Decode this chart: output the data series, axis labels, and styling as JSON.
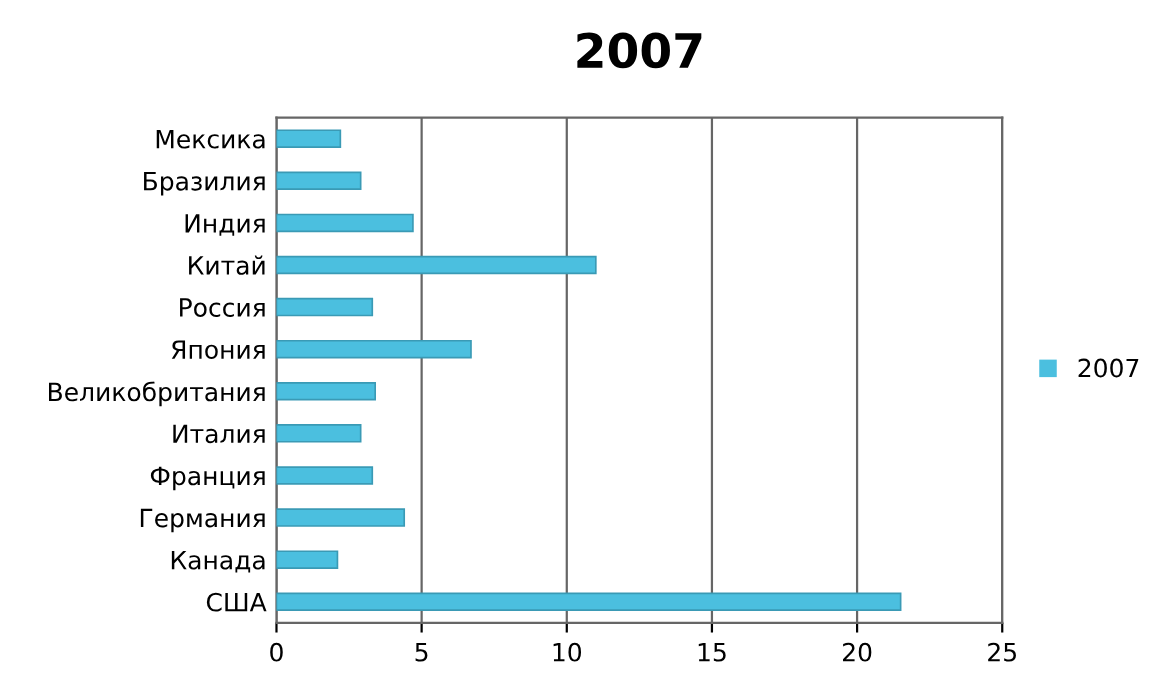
{
  "chart_data": {
    "type": "bar",
    "orientation": "horizontal",
    "title": "2007",
    "categories": [
      "Мексика",
      "Бразилия",
      "Индия",
      "Китай",
      "Россия",
      "Япония",
      "Великобритания",
      "Италия",
      "Франция",
      "Германия",
      "Канада",
      "США"
    ],
    "series": [
      {
        "name": "2007",
        "color": "#4bbfdf",
        "values": [
          2.2,
          2.9,
          4.7,
          11.0,
          3.3,
          6.7,
          3.4,
          2.9,
          3.3,
          4.4,
          2.1,
          21.5
        ]
      }
    ],
    "xlim": [
      0,
      25
    ],
    "xticks": [
      0,
      5,
      10,
      15,
      20,
      25
    ],
    "grid": "x",
    "legend": "right"
  }
}
